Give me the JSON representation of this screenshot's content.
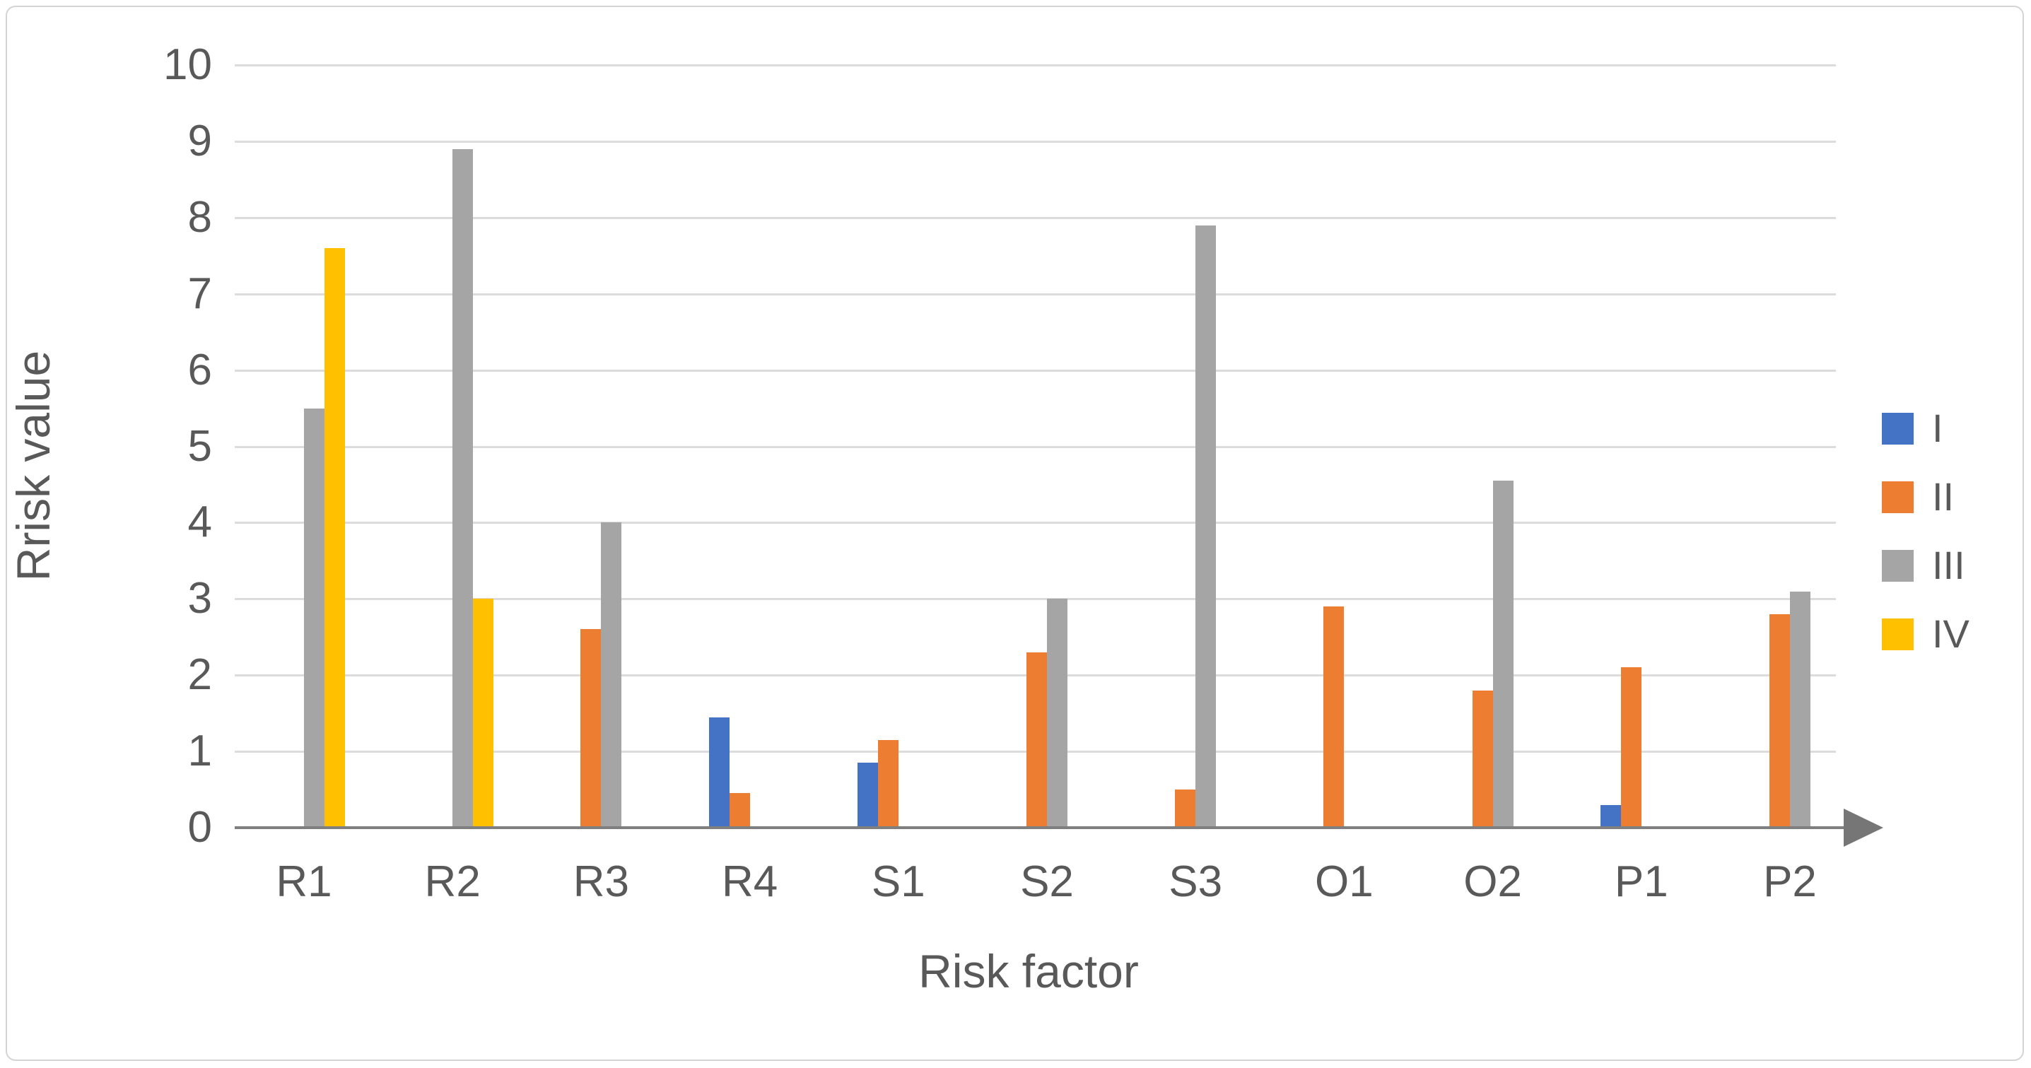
{
  "chart_data": {
    "type": "bar",
    "title": "",
    "xlabel": "Risk factor",
    "ylabel": "Rrisk value",
    "categories": [
      "R1",
      "R2",
      "R3",
      "R4",
      "S1",
      "S2",
      "S3",
      "O1",
      "O2",
      "P1",
      "P2"
    ],
    "series": [
      {
        "name": "I",
        "color": "#4472C4",
        "values": [
          0,
          0,
          0,
          1.45,
          0.85,
          0,
          0,
          0,
          0,
          0.3,
          0
        ]
      },
      {
        "name": "II",
        "color": "#ED7D31",
        "values": [
          0,
          0,
          2.6,
          0.45,
          1.15,
          2.3,
          0.5,
          2.9,
          1.8,
          2.1,
          2.8
        ]
      },
      {
        "name": "III",
        "color": "#A5A5A5",
        "values": [
          5.5,
          8.9,
          4.0,
          0,
          0,
          3.0,
          7.9,
          0,
          4.55,
          0,
          3.1
        ]
      },
      {
        "name": "IV",
        "color": "#FFC000",
        "values": [
          7.6,
          3.0,
          0,
          0,
          0,
          0,
          0,
          0,
          0,
          0,
          0
        ]
      }
    ],
    "ylim": [
      0,
      10
    ],
    "yticks": [
      0,
      1,
      2,
      3,
      4,
      5,
      6,
      7,
      8,
      9,
      10
    ],
    "grid": true,
    "legend_position": "right",
    "legend_entries": [
      "I",
      "II",
      "III",
      "IV"
    ]
  },
  "style_colors": {
    "gridline": "#dcdcdc",
    "axis": "#7f7f7f",
    "text": "#595959"
  }
}
